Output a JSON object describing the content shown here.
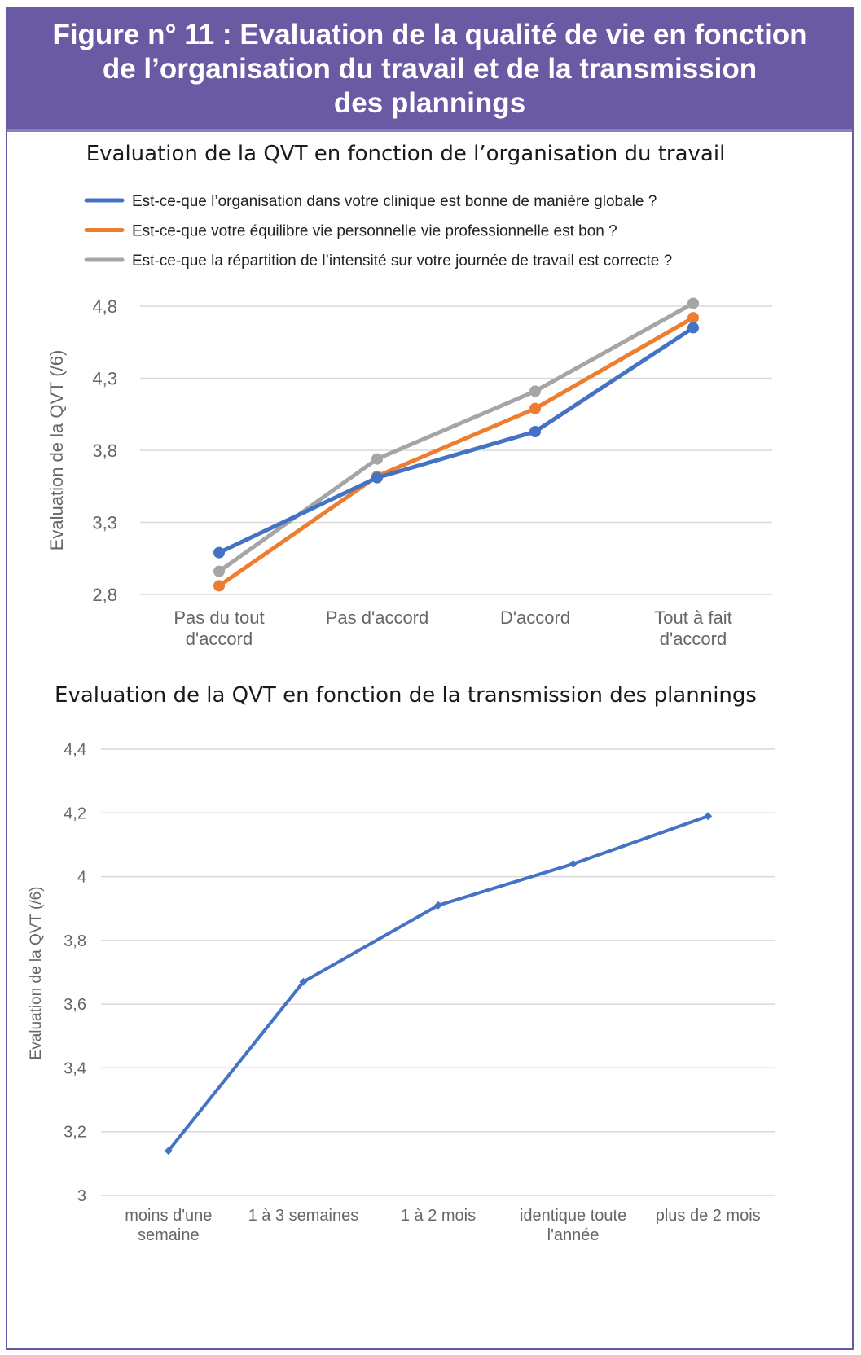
{
  "figure": {
    "title_line1": "Figure n° 11 : Evaluation de la qualité de vie en fonction",
    "title_line2": "de l’organisation du travail et de la transmission",
    "title_line3": "des plannings",
    "accent_color": "#6a5aa4"
  },
  "chart_data": [
    {
      "type": "line",
      "title": "Evaluation de la QVT en fonction de l’organisation du travail",
      "ylabel": "Evaluation de la QVT (/6)",
      "xlabel": "",
      "ylim": [
        2.8,
        4.8
      ],
      "yticks": [
        "4,8",
        "4,3",
        "3,8",
        "3,3",
        "2,8"
      ],
      "categories": [
        [
          "Pas du tout",
          "d'accord"
        ],
        [
          "Pas d'accord"
        ],
        [
          "D'accord"
        ],
        [
          "Tout à fait",
          "d'accord"
        ]
      ],
      "legend_position": "top",
      "grid": true,
      "series": [
        {
          "name": "Est-ce-que l’organisation dans votre clinique est bonne de manière globale ?",
          "color": "#4472c4",
          "values": [
            3.09,
            3.61,
            3.93,
            4.65
          ]
        },
        {
          "name": "Est-ce-que votre équilibre vie personnelle vie professionnelle est bon ?",
          "color": "#ed7d31",
          "values": [
            2.86,
            3.62,
            4.09,
            4.72
          ]
        },
        {
          "name": "Est-ce-que la répartition de l’intensité sur votre journée de travail est correcte ?",
          "color": "#a5a5a5",
          "values": [
            2.96,
            3.74,
            4.21,
            4.82
          ]
        }
      ]
    },
    {
      "type": "line",
      "title": "Evaluation de la QVT en fonction de la transmission des plannings",
      "ylabel": "Evaluation de la QVT (/6)",
      "xlabel": "",
      "ylim": [
        3,
        4.4
      ],
      "yticks": [
        "4,4",
        "4,2",
        "4",
        "3,8",
        "3,6",
        "3,4",
        "3,2",
        "3"
      ],
      "categories": [
        [
          "moins d'une",
          "semaine"
        ],
        [
          "1 à 3 semaines"
        ],
        [
          "1 à 2 mois"
        ],
        [
          "identique toute",
          "l'année"
        ],
        [
          "plus de 2 mois"
        ]
      ],
      "grid": true,
      "series": [
        {
          "color": "#4472c4",
          "values": [
            3.14,
            3.67,
            3.91,
            4.04,
            4.19
          ]
        }
      ]
    }
  ]
}
